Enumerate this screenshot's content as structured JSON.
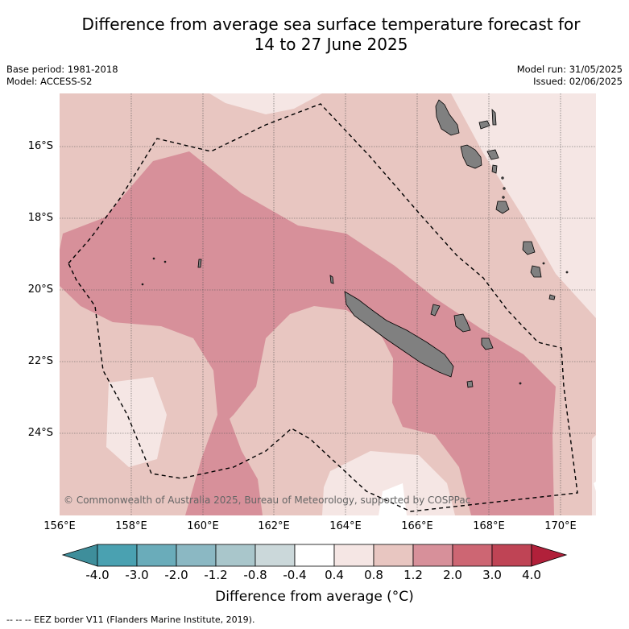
{
  "title_line1": "Difference from average sea surface temperature forecast for",
  "title_line2": "14 to 27 June 2025",
  "base_period": "Base period: 1981-2018",
  "model": "Model: ACCESS-S2",
  "model_run": "Model run: 31/05/2025",
  "issued": "Issued: 02/06/2025",
  "lat_labels": [
    "16°S",
    "18°S",
    "20°S",
    "22°S",
    "24°S"
  ],
  "lon_labels": [
    "156°E",
    "158°E",
    "160°E",
    "162°E",
    "164°E",
    "166°E",
    "168°E",
    "170°E"
  ],
  "copyright": "© Commonwealth of Australia 2025, Bureau of Meteorology, supported by COSPPac",
  "colorbar": {
    "ticks": [
      "-4.0",
      "-3.0",
      "-2.0",
      "-1.2",
      "-0.8",
      "-0.4",
      "0.4",
      "0.8",
      "1.2",
      "2.0",
      "3.0",
      "4.0"
    ],
    "colors": [
      "#3e8e9b",
      "#4aa1b1",
      "#6aacba",
      "#8bb8c3",
      "#a9c6cb",
      "#cbd8da",
      "#ffffff",
      "#f5e6e4",
      "#e8c6c1",
      "#d7909a",
      "#cd6673",
      "#bf4455",
      "#b1203a"
    ],
    "label": "Difference from average (°C)"
  },
  "footnote": "--  --  -- EEZ border V11 (Flanders Marine Institute, 2019)."
}
